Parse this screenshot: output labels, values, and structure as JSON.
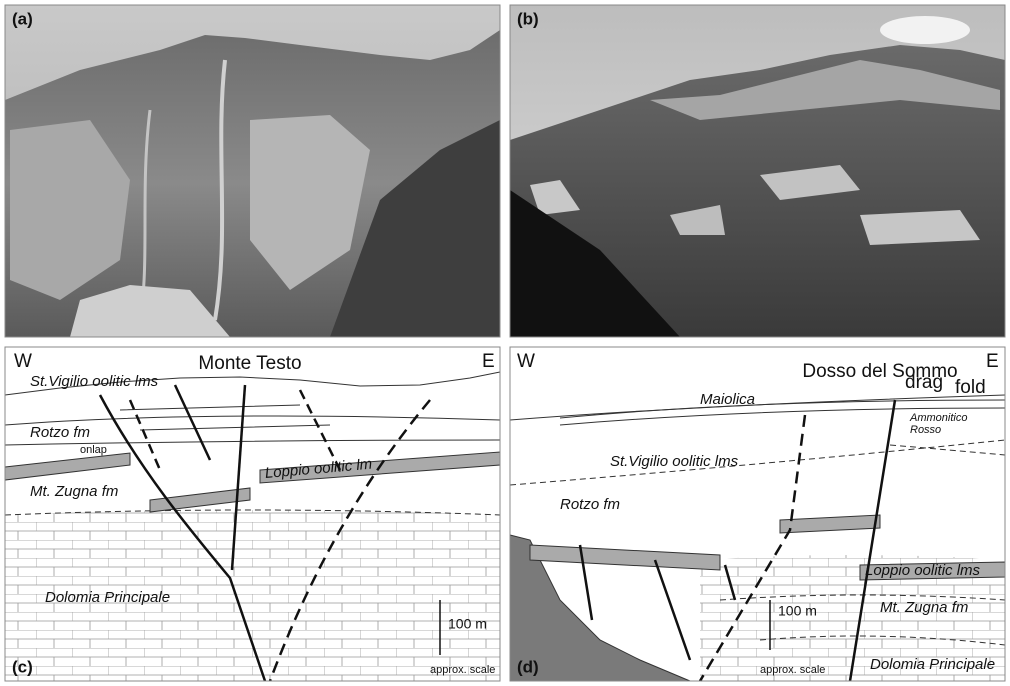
{
  "panels": [
    {
      "label": "(a)"
    },
    {
      "label": "(b)"
    },
    {
      "label": "(c)",
      "west": "W",
      "title": "Monte Testo",
      "east": "E",
      "units": [
        "St.Vigilio oolitic lms",
        "Rotzo fm",
        "Loppio oolitic lm",
        "Mt. Zugna fm",
        "Dolomia Principale"
      ],
      "annotation": "onlap",
      "scale": {
        "length": "100 m",
        "note": "approx. scale"
      }
    },
    {
      "label": "(d)",
      "west": "W",
      "title": "Dosso del Sommo",
      "east": "E",
      "units": [
        "Maiolica",
        "Ammonitico",
        "Rosso",
        "St.Vigilio oolitic lms",
        "Rotzo fm",
        "Loppio oolitic lms",
        "Mt. Zugna fm",
        "Dolomia Principale"
      ],
      "annotation": [
        "drag",
        "fold"
      ],
      "scale": {
        "length": "100 m",
        "note": "approx. scale"
      }
    }
  ]
}
